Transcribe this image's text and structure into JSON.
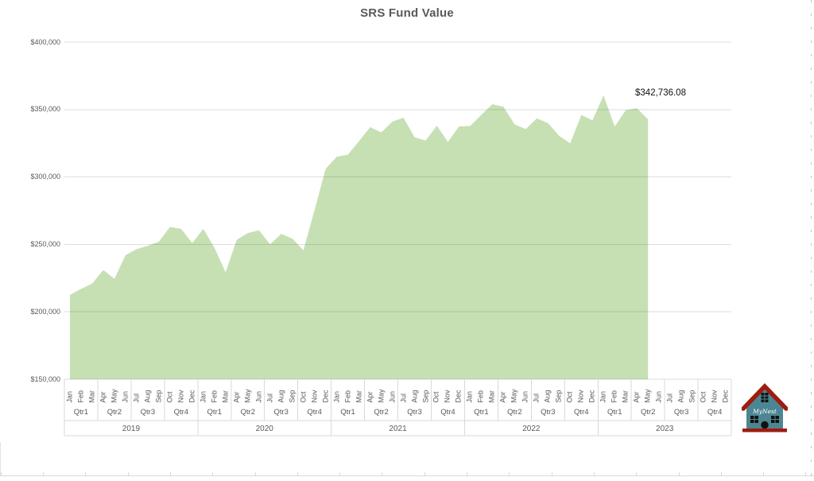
{
  "title": "SRS Fund Value",
  "data_label": "$342,736.08",
  "y_axis_ticks": [
    "$400,000",
    "$350,000",
    "$300,000",
    "$250,000",
    "$200,000",
    "$150,000"
  ],
  "x_axis": {
    "months": [
      "Jan",
      "Feb",
      "Mar",
      "Apr",
      "May",
      "Jun",
      "Jul",
      "Aug",
      "Sep",
      "Oct",
      "Nov",
      "Dec"
    ],
    "quarters": [
      "Qtr1",
      "Qtr2",
      "Qtr3",
      "Qtr4"
    ],
    "years": [
      "2019",
      "2020",
      "2021",
      "2022",
      "2023"
    ]
  },
  "logo": {
    "name": "MyNest"
  },
  "colors": {
    "area_fill": "#c6e0b4",
    "gridline_over_white": "#d9d9d9",
    "gridline_overlay": "rgba(0,0,0,0.13)",
    "axis_text": "#595959",
    "title_text": "#595959",
    "data_label_text": "#111111",
    "logo_body": "#4d8693",
    "logo_roof": "#9e1c0f",
    "logo_detail": "#111111"
  },
  "chart_data": {
    "type": "area",
    "title": "SRS Fund Value",
    "x_frequency": "monthly",
    "x_start": "2019-01",
    "x_end": "2023-05",
    "x_axis_extends_to": "2023-12",
    "x_label_levels": [
      "month",
      "quarter",
      "year"
    ],
    "values": [
      212500,
      217000,
      221000,
      231000,
      224500,
      242000,
      246500,
      249000,
      252000,
      263000,
      261500,
      251000,
      261500,
      247500,
      229300,
      253400,
      258400,
      260500,
      250100,
      257800,
      254400,
      245600,
      275400,
      306000,
      315000,
      316500,
      326500,
      337000,
      333000,
      341000,
      344000,
      329500,
      327000,
      338000,
      326000,
      337500,
      337800,
      346000,
      354000,
      352000,
      339000,
      335500,
      343500,
      340000,
      330500,
      325000,
      346000,
      342000,
      360500,
      337500,
      349500,
      351000,
      342736.08
    ],
    "ylim": [
      150000,
      400000
    ],
    "y_tick_step": 50000,
    "currency": "USD",
    "grid": "horizontal",
    "legend": "none",
    "fill_color": "#c6e0b4",
    "last_point_label": "$342,736.08"
  }
}
